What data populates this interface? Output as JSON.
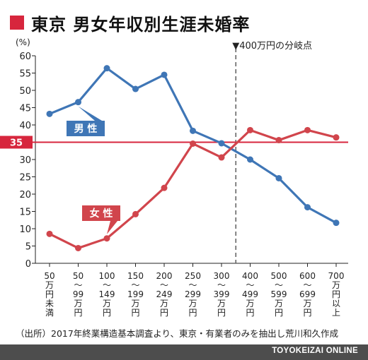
{
  "title": "東京 男女年収別生涯未婚率",
  "source": "（出所）2017年終業構造基本調査より、東京・有業者のみを抽出し荒川和久作成",
  "brand": "TOYOKEIZAI ONLINE",
  "colors": {
    "accent": "#d7263d",
    "male": "#3f76b6",
    "female": "#d1454c",
    "threshold": "#d7263d",
    "divider": "#666666"
  },
  "chart_data": {
    "type": "line",
    "ylabel": "(%)",
    "ylim": [
      0,
      60
    ],
    "yticks": [
      0,
      5,
      10,
      15,
      20,
      25,
      30,
      35,
      40,
      45,
      50,
      55,
      60
    ],
    "categories": [
      "50万円未満",
      "50〜99万円",
      "100〜149万円",
      "150〜199万円",
      "200〜249万円",
      "250〜299万円",
      "300〜399万円",
      "400〜499万円",
      "500〜599万円",
      "600〜699万円",
      "700万円以上"
    ],
    "x_tick_labels": [
      [
        "50",
        "万",
        "円",
        "未",
        "満"
      ],
      [
        "50",
        "〜",
        "99",
        "万",
        "円"
      ],
      [
        "100",
        "〜",
        "149",
        "万",
        "円"
      ],
      [
        "150",
        "〜",
        "199",
        "万",
        "円"
      ],
      [
        "200",
        "〜",
        "249",
        "万",
        "円"
      ],
      [
        "250",
        "〜",
        "299",
        "万",
        "円"
      ],
      [
        "300",
        "〜",
        "399",
        "万",
        "円"
      ],
      [
        "400",
        "〜",
        "499",
        "万",
        "円"
      ],
      [
        "500",
        "〜",
        "599",
        "万",
        "円"
      ],
      [
        "600",
        "〜",
        "699",
        "万",
        "円"
      ],
      [
        "700",
        "万",
        "円",
        "以",
        "上"
      ]
    ],
    "series": [
      {
        "name": "男 性",
        "color": "#3f76b6",
        "values": [
          43.2,
          46.6,
          56.4,
          50.4,
          54.5,
          38.3,
          34.7,
          30.0,
          24.6,
          16.2,
          11.7
        ]
      },
      {
        "name": "女 性",
        "color": "#d1454c",
        "values": [
          8.5,
          4.4,
          7.2,
          14.2,
          21.8,
          34.6,
          30.6,
          38.5,
          35.6,
          38.5,
          36.4
        ]
      }
    ],
    "reference_line": {
      "y": 35,
      "label": "35"
    },
    "divider_after_index": 6,
    "divider_label": "▼400万円の分岐点",
    "grid": false
  }
}
